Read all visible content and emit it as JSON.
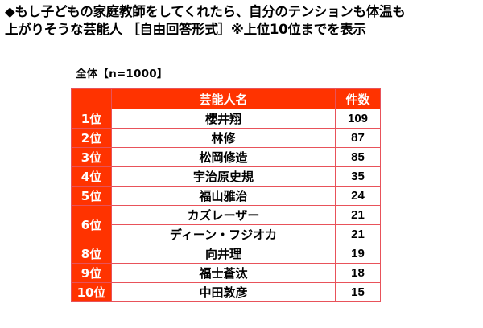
{
  "title": {
    "line1": "◆もし子どもの家庭教師をしてくれたら、自分のテンションも体温も",
    "line2": "上がりそうな芸能人 ［自由回答形式］※上位10位までを表示"
  },
  "subtitle": "全体【n=1000】",
  "table": {
    "headers": {
      "rank": "",
      "name": "芸能人名",
      "count": "件数"
    },
    "rows": [
      {
        "rank": "1位",
        "name": "櫻井翔",
        "count": "109"
      },
      {
        "rank": "2位",
        "name": "林修",
        "count": "87"
      },
      {
        "rank": "3位",
        "name": "松岡修造",
        "count": "85"
      },
      {
        "rank": "4位",
        "name": "宇治原史規",
        "count": "35"
      },
      {
        "rank": "5位",
        "name": "福山雅治",
        "count": "24"
      },
      {
        "rank": "6位",
        "name": "カズレーザー",
        "count": "21"
      },
      {
        "rank": "6位",
        "name": "ディーン・フジオカ",
        "count": "21"
      },
      {
        "rank": "8位",
        "name": "向井理",
        "count": "19"
      },
      {
        "rank": "9位",
        "name": "福士蒼汰",
        "count": "18"
      },
      {
        "rank": "10位",
        "name": "中田敦彦",
        "count": "15"
      }
    ]
  },
  "colors": {
    "accent": "#FF3300",
    "border": "#E8525A",
    "header_text": "#FFFFFF"
  }
}
